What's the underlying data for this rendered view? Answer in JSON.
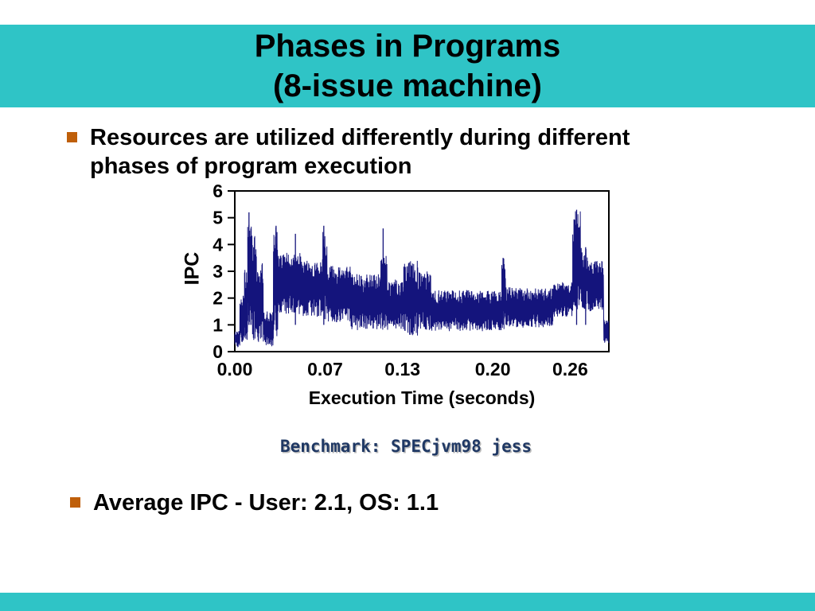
{
  "slide": {
    "title": {
      "line1": "Phases in Programs",
      "line2": "(8-issue machine)"
    },
    "bullets": [
      {
        "text": "Resources are utilized differently during different phases of program execution"
      },
      {
        "text": "Average IPC - User: 2.1, OS: 1.1"
      }
    ],
    "caption": "Benchmark: SPECjvm98 jess",
    "colors": {
      "banner": "#2fc4c6",
      "bullet_marker": "#bf5f0a",
      "series_line": "#14147c",
      "caption_text": "#1f3864"
    }
  },
  "chart_data": {
    "type": "line",
    "title": "",
    "xlabel": "Execution Time (seconds)",
    "ylabel": "IPC",
    "xlim": [
      0,
      0.29
    ],
    "ylim": [
      0,
      6
    ],
    "xtick_labels": [
      "0.00",
      "0.07",
      "0.13",
      "0.20",
      "0.26"
    ],
    "xtick_values": [
      0,
      0.07,
      0.13,
      0.2,
      0.26
    ],
    "ytick_values": [
      0,
      1,
      2,
      3,
      4,
      5,
      6
    ],
    "grid": false,
    "legend": "none",
    "series": [
      {
        "name": "IPC over execution time (SPECjvm98 jess, 8-issue machine)",
        "representation": "dense noisy line; envelope_segments are [x_start_sec, x_end_sec, min_IPC, max_IPC]; spikes are [x_sec, peak_IPC]",
        "envelope_segments": [
          [
            0.0,
            0.004,
            0.15,
            0.8
          ],
          [
            0.004,
            0.0075,
            0.3,
            2.1
          ],
          [
            0.0075,
            0.01,
            0.4,
            3.2
          ],
          [
            0.01,
            0.013,
            0.6,
            4.9
          ],
          [
            0.013,
            0.017,
            0.4,
            4.4
          ],
          [
            0.017,
            0.022,
            0.3,
            3.3
          ],
          [
            0.022,
            0.03,
            0.2,
            1.5
          ],
          [
            0.03,
            0.0335,
            0.5,
            4.7
          ],
          [
            0.0335,
            0.052,
            1.4,
            3.7
          ],
          [
            0.052,
            0.068,
            1.3,
            3.4
          ],
          [
            0.068,
            0.0715,
            0.9,
            4.6
          ],
          [
            0.0715,
            0.09,
            1.1,
            3.2
          ],
          [
            0.09,
            0.113,
            0.8,
            2.9
          ],
          [
            0.113,
            0.118,
            0.8,
            3.6
          ],
          [
            0.118,
            0.131,
            0.8,
            2.7
          ],
          [
            0.131,
            0.142,
            0.6,
            3.4
          ],
          [
            0.142,
            0.152,
            0.8,
            3.0
          ],
          [
            0.152,
            0.207,
            0.75,
            2.3
          ],
          [
            0.207,
            0.21,
            0.8,
            3.5
          ],
          [
            0.21,
            0.247,
            0.9,
            2.4
          ],
          [
            0.247,
            0.262,
            1.3,
            2.6
          ],
          [
            0.262,
            0.268,
            1.4,
            5.3
          ],
          [
            0.268,
            0.274,
            1.5,
            3.9
          ],
          [
            0.274,
            0.286,
            1.5,
            3.4
          ],
          [
            0.286,
            0.29,
            0.3,
            1.2
          ]
        ],
        "spikes": [
          [
            0.011,
            5.2
          ],
          [
            0.0125,
            4.6
          ],
          [
            0.032,
            4.7
          ],
          [
            0.047,
            4.4
          ],
          [
            0.069,
            4.7
          ],
          [
            0.115,
            4.6
          ],
          [
            0.208,
            3.5
          ],
          [
            0.265,
            5.3
          ],
          [
            0.272,
            3.9
          ]
        ]
      }
    ],
    "annotations": {
      "average_ipc_user": 2.1,
      "average_ipc_os": 1.1
    }
  }
}
